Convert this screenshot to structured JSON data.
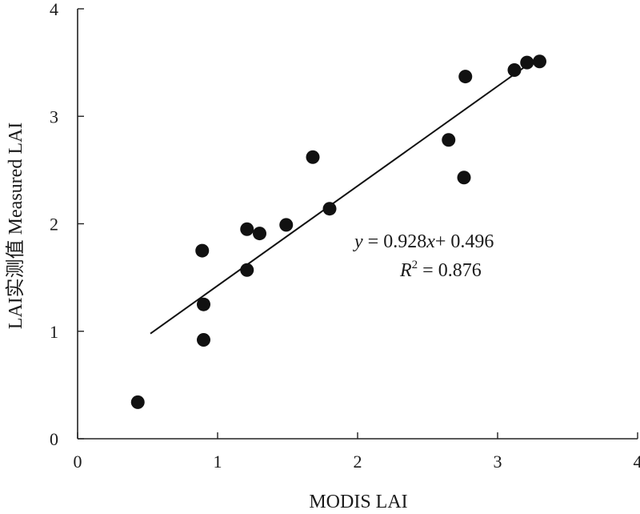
{
  "chart_data": {
    "type": "scatter",
    "xlabel": "MODIS LAI",
    "ylabel": "LAI实测值  Measured LAI",
    "xlim": [
      0,
      4
    ],
    "ylim": [
      0,
      4
    ],
    "x_ticks": [
      "0",
      "1",
      "2",
      "3",
      "4"
    ],
    "y_ticks": [
      "0",
      "1",
      "2",
      "3",
      "4"
    ],
    "grid": false,
    "series": [
      {
        "points": [
          {
            "x": 0.43,
            "y": 0.34
          },
          {
            "x": 0.89,
            "y": 1.75
          },
          {
            "x": 0.9,
            "y": 1.25
          },
          {
            "x": 0.9,
            "y": 0.92
          },
          {
            "x": 1.21,
            "y": 1.95
          },
          {
            "x": 1.21,
            "y": 1.57
          },
          {
            "x": 1.3,
            "y": 1.91
          },
          {
            "x": 1.49,
            "y": 1.99
          },
          {
            "x": 1.68,
            "y": 2.62
          },
          {
            "x": 1.8,
            "y": 2.14
          },
          {
            "x": 2.65,
            "y": 2.78
          },
          {
            "x": 2.76,
            "y": 2.43
          },
          {
            "x": 2.77,
            "y": 3.37
          },
          {
            "x": 3.12,
            "y": 3.43
          },
          {
            "x": 3.21,
            "y": 3.5
          },
          {
            "x": 3.3,
            "y": 3.51
          }
        ],
        "color": "#111111"
      }
    ],
    "trendline": {
      "slope": 0.928,
      "intercept": 0.496,
      "x_range": [
        0.52,
        3.25
      ]
    },
    "annotation": {
      "y_var": "y",
      "equals_slope": " = 0.928",
      "x_var": "x",
      "intercept_part": "+ 0.496",
      "r_var": "R",
      "r_sup": "2",
      "r_value": " = 0.876"
    }
  }
}
